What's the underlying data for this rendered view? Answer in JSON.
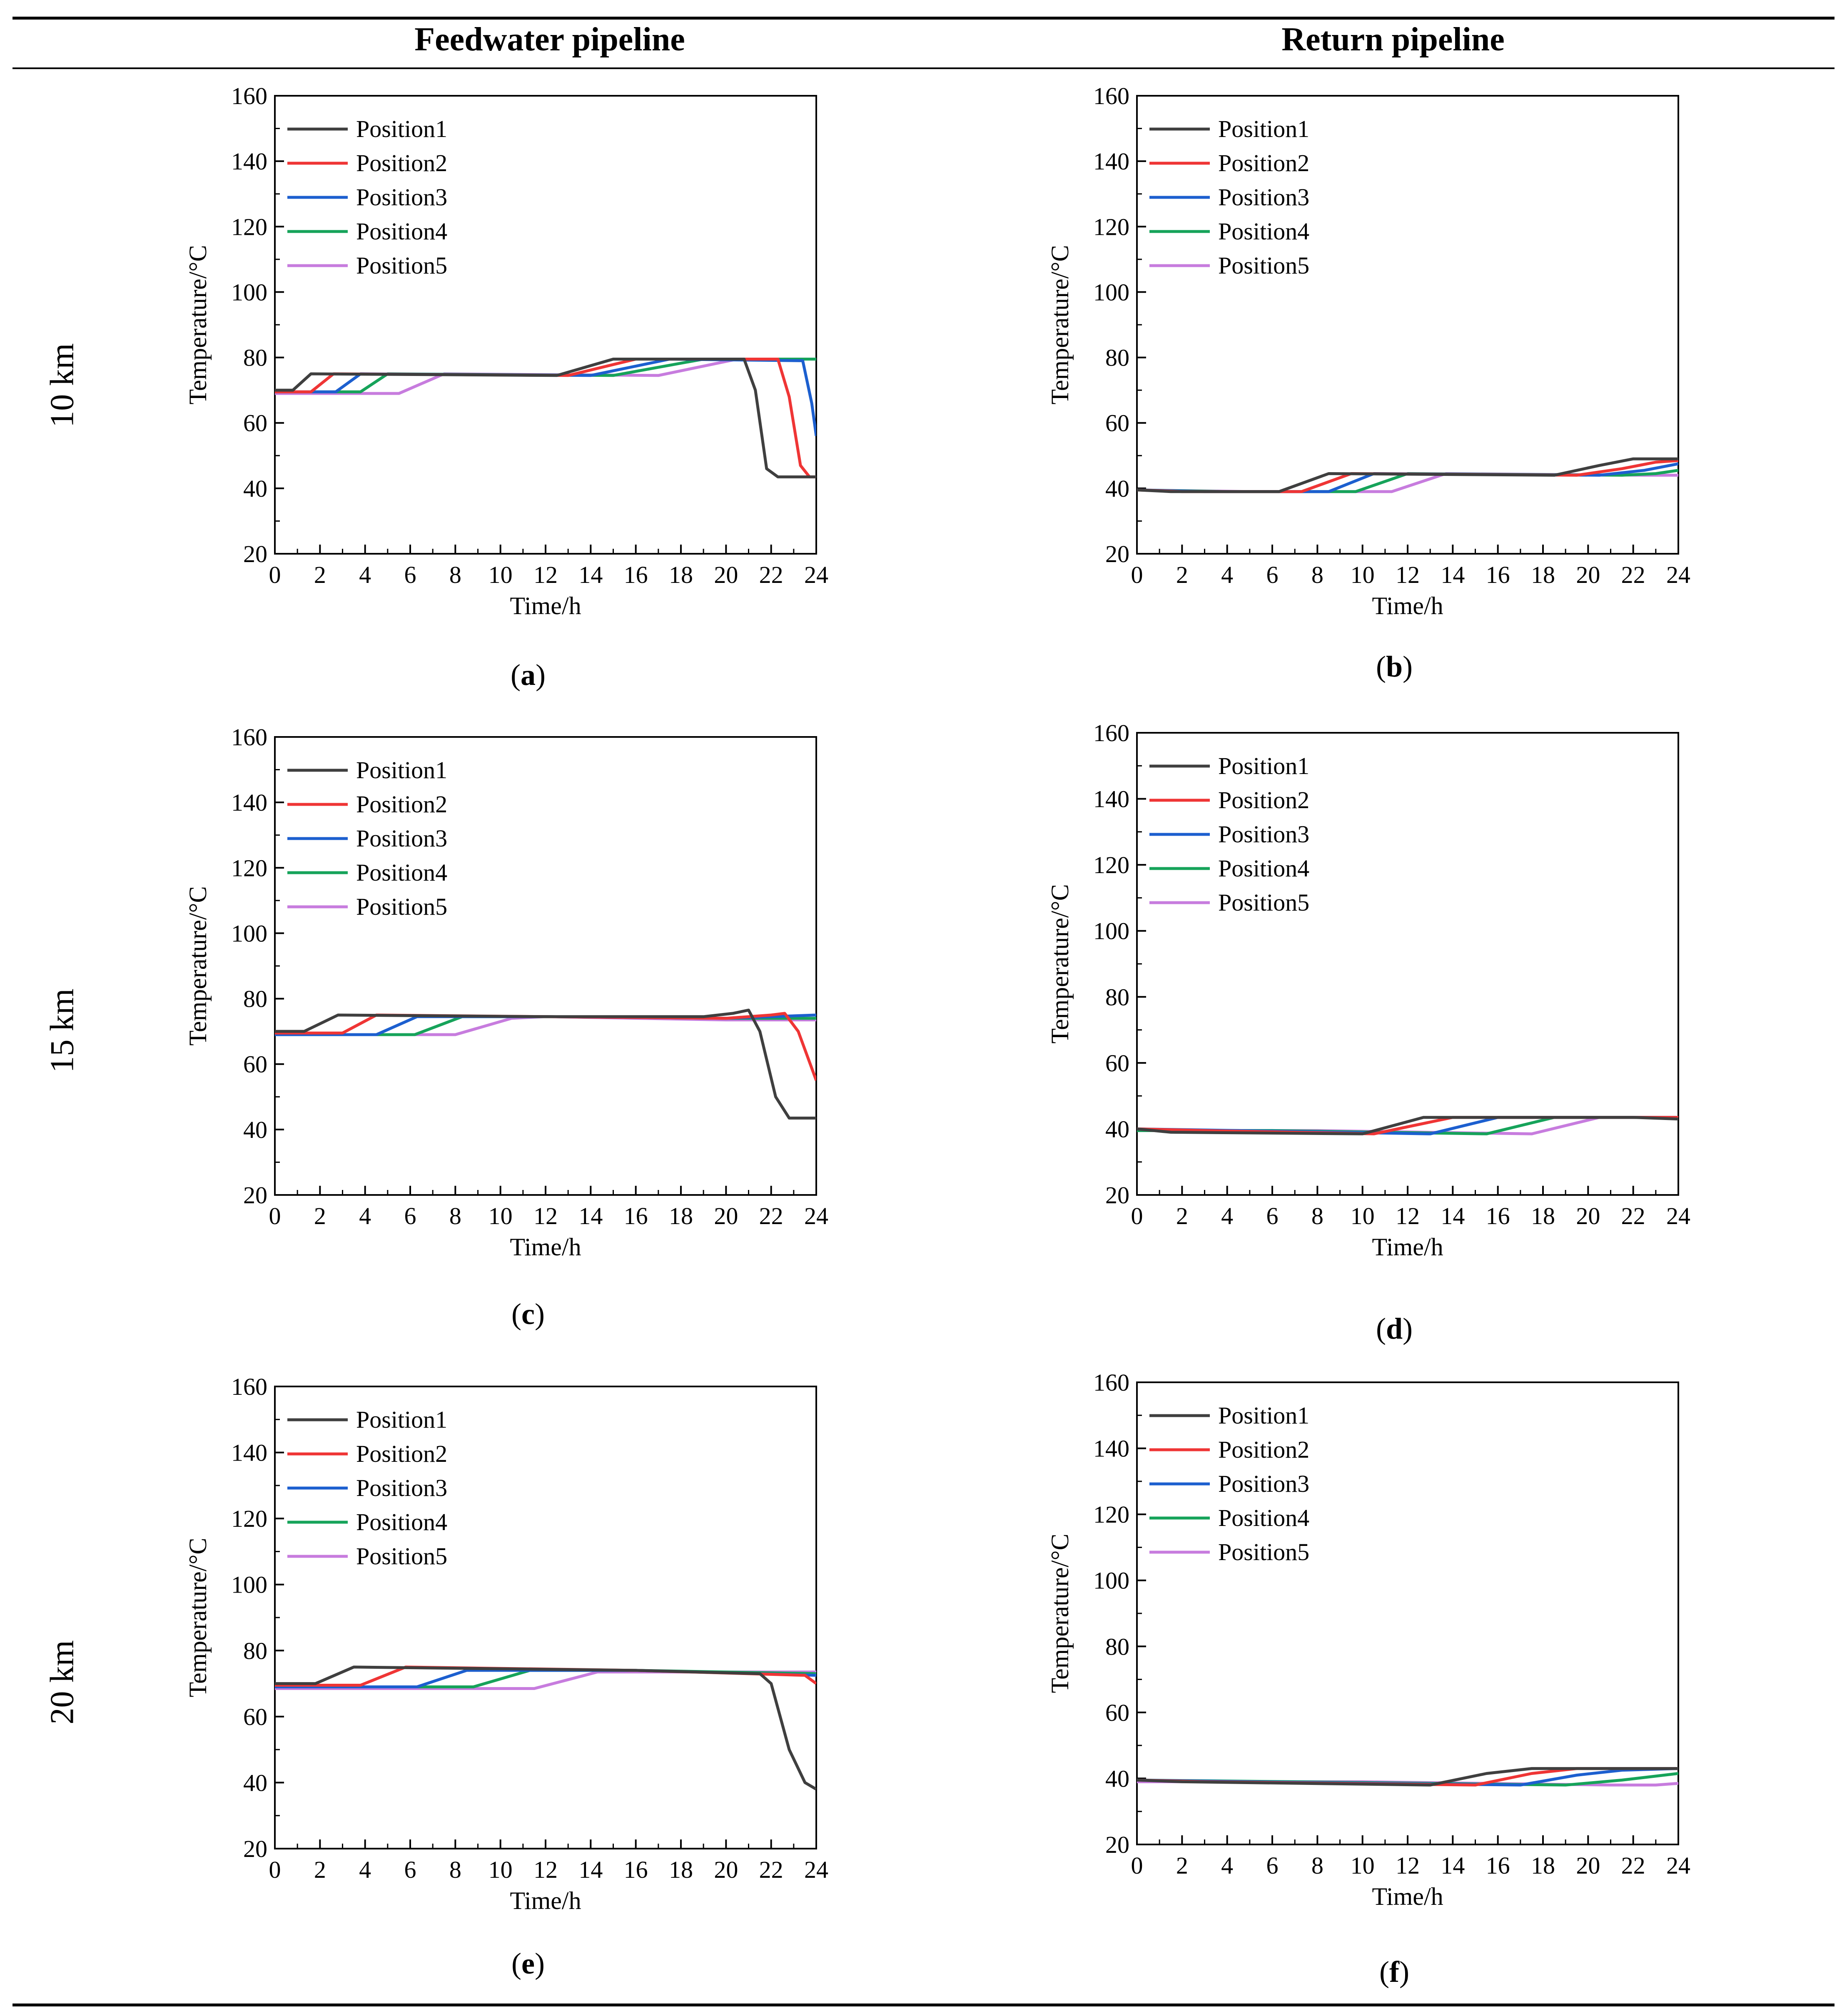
{
  "header": {
    "col_left": "Feedwater pipeline",
    "col_right": "Return pipeline"
  },
  "rows": [
    {
      "label": "10 km"
    },
    {
      "label": "15 km"
    },
    {
      "label": "20 km"
    }
  ],
  "captions": [
    "a",
    "b",
    "c",
    "d",
    "e",
    "f"
  ],
  "series_colors": [
    "#3f3f3f",
    "#ef3535",
    "#1c5fcf",
    "#16a35a",
    "#c77cde"
  ],
  "chart_data": [
    {
      "id": "a",
      "type": "line",
      "xlabel": "Time/h",
      "ylabel": "Temperature/°C",
      "xlim": [
        0,
        24
      ],
      "ylim": [
        20,
        160
      ],
      "xticks": [
        0,
        2,
        4,
        6,
        8,
        10,
        12,
        14,
        16,
        18,
        20,
        22,
        24
      ],
      "yticks": [
        20,
        40,
        60,
        80,
        100,
        120,
        140,
        160
      ],
      "legend": "top-left",
      "series": [
        {
          "name": "Position1",
          "points": [
            [
              0,
              70
            ],
            [
              0.8,
              70
            ],
            [
              1.6,
              75
            ],
            [
              12.5,
              74.5
            ],
            [
              15,
              79.5
            ],
            [
              20.8,
              79.5
            ],
            [
              21.3,
              70
            ],
            [
              21.8,
              46
            ],
            [
              22.3,
              43.5
            ],
            [
              24,
              43.5
            ]
          ]
        },
        {
          "name": "Position2",
          "points": [
            [
              0,
              69.5
            ],
            [
              1.6,
              69.5
            ],
            [
              2.6,
              75
            ],
            [
              13,
              74.5
            ],
            [
              16,
              79.5
            ],
            [
              22.3,
              79.5
            ],
            [
              22.8,
              68
            ],
            [
              23.3,
              47
            ],
            [
              23.7,
              43.5
            ],
            [
              24,
              43.5
            ]
          ]
        },
        {
          "name": "Position3",
          "points": [
            [
              0,
              69.5
            ],
            [
              2.7,
              69.5
            ],
            [
              3.8,
              75
            ],
            [
              14,
              74.5
            ],
            [
              17.5,
              79.5
            ],
            [
              23.4,
              79
            ],
            [
              23.8,
              66
            ],
            [
              24,
              56
            ]
          ]
        },
        {
          "name": "Position4",
          "points": [
            [
              0,
              69.5
            ],
            [
              3.8,
              69.5
            ],
            [
              5,
              75
            ],
            [
              15,
              74.5
            ],
            [
              19,
              79.5
            ],
            [
              24,
              79.5
            ]
          ]
        },
        {
          "name": "Position5",
          "points": [
            [
              0,
              69
            ],
            [
              5.5,
              69
            ],
            [
              7.5,
              75
            ],
            [
              17,
              74.5
            ],
            [
              20.5,
              79.5
            ],
            [
              24,
              79.5
            ]
          ]
        }
      ]
    },
    {
      "id": "b",
      "type": "line",
      "xlabel": "Time/h",
      "ylabel": "Temperature/°C",
      "xlim": [
        0,
        24
      ],
      "ylim": [
        20,
        160
      ],
      "xticks": [
        0,
        2,
        4,
        6,
        8,
        10,
        12,
        14,
        16,
        18,
        20,
        22,
        24
      ],
      "yticks": [
        20,
        40,
        60,
        80,
        100,
        120,
        140,
        160
      ],
      "legend": "top-left",
      "series": [
        {
          "name": "Position1",
          "points": [
            [
              0,
              39.5
            ],
            [
              1.5,
              39
            ],
            [
              6.3,
              39
            ],
            [
              8.5,
              44.5
            ],
            [
              18.5,
              44
            ],
            [
              20.5,
              47
            ],
            [
              22,
              49
            ],
            [
              24,
              49
            ]
          ]
        },
        {
          "name": "Position2",
          "points": [
            [
              0,
              39.5
            ],
            [
              2,
              39
            ],
            [
              7.3,
              39
            ],
            [
              9.5,
              44.5
            ],
            [
              19.5,
              44
            ],
            [
              21.5,
              46
            ],
            [
              23,
              48
            ],
            [
              24,
              48.5
            ]
          ]
        },
        {
          "name": "Position3",
          "points": [
            [
              0,
              39.5
            ],
            [
              3,
              39
            ],
            [
              8.5,
              39
            ],
            [
              10.5,
              44.5
            ],
            [
              20.5,
              44
            ],
            [
              22.5,
              45.5
            ],
            [
              24,
              47.5
            ]
          ]
        },
        {
          "name": "Position4",
          "points": [
            [
              0,
              39.5
            ],
            [
              4,
              39
            ],
            [
              9.7,
              39
            ],
            [
              12,
              44.5
            ],
            [
              21.5,
              44
            ],
            [
              23,
              44.5
            ],
            [
              24,
              45.5
            ]
          ]
        },
        {
          "name": "Position5",
          "points": [
            [
              0,
              39.5
            ],
            [
              5,
              39
            ],
            [
              11.3,
              39
            ],
            [
              13.7,
              44.5
            ],
            [
              22.5,
              44
            ],
            [
              24,
              44
            ]
          ]
        }
      ]
    },
    {
      "id": "c",
      "type": "line",
      "xlabel": "Time/h",
      "ylabel": "Temperature/°C",
      "xlim": [
        0,
        24
      ],
      "ylim": [
        20,
        160
      ],
      "xticks": [
        0,
        2,
        4,
        6,
        8,
        10,
        12,
        14,
        16,
        18,
        20,
        22,
        24
      ],
      "yticks": [
        20,
        40,
        60,
        80,
        100,
        120,
        140,
        160
      ],
      "legend": "top-left",
      "series": [
        {
          "name": "Position1",
          "points": [
            [
              0,
              70
            ],
            [
              1.3,
              70
            ],
            [
              2.8,
              75
            ],
            [
              12,
              74.5
            ],
            [
              19,
              74.5
            ],
            [
              20.3,
              75.5
            ],
            [
              21,
              76.5
            ],
            [
              21.5,
              70
            ],
            [
              22.2,
              50
            ],
            [
              22.8,
              43.5
            ],
            [
              24,
              43.5
            ]
          ]
        },
        {
          "name": "Position2",
          "points": [
            [
              0,
              69.5
            ],
            [
              3,
              69.5
            ],
            [
              4.5,
              75
            ],
            [
              12,
              74.5
            ],
            [
              20,
              74
            ],
            [
              22,
              75
            ],
            [
              22.6,
              75.5
            ],
            [
              23.2,
              70
            ],
            [
              24,
              55
            ]
          ]
        },
        {
          "name": "Position3",
          "points": [
            [
              0,
              69
            ],
            [
              4.5,
              69
            ],
            [
              6.3,
              74.5
            ],
            [
              12,
              74.5
            ],
            [
              20,
              74
            ],
            [
              24,
              75
            ]
          ]
        },
        {
          "name": "Position4",
          "points": [
            [
              0,
              69
            ],
            [
              6.2,
              69
            ],
            [
              8.3,
              74.5
            ],
            [
              12,
              74.5
            ],
            [
              20,
              74
            ],
            [
              24,
              74
            ]
          ]
        },
        {
          "name": "Position5",
          "points": [
            [
              0,
              69
            ],
            [
              8,
              69
            ],
            [
              10.5,
              74
            ],
            [
              12,
              74.5
            ],
            [
              20,
              73.5
            ],
            [
              24,
              73.5
            ]
          ]
        }
      ]
    },
    {
      "id": "d",
      "type": "line",
      "xlabel": "Time/h",
      "ylabel": "Temperature/°C",
      "xlim": [
        0,
        24
      ],
      "ylim": [
        20,
        160
      ],
      "xticks": [
        0,
        2,
        4,
        6,
        8,
        10,
        12,
        14,
        16,
        18,
        20,
        22,
        24
      ],
      "yticks": [
        20,
        40,
        60,
        80,
        100,
        120,
        140,
        160
      ],
      "legend": "top-left",
      "series": [
        {
          "name": "Position1",
          "points": [
            [
              0,
              40
            ],
            [
              1.5,
              39
            ],
            [
              10,
              38.5
            ],
            [
              12.7,
              43.5
            ],
            [
              22,
              43.5
            ],
            [
              24,
              43
            ]
          ]
        },
        {
          "name": "Position2",
          "points": [
            [
              0,
              40
            ],
            [
              3,
              39.5
            ],
            [
              10.5,
              38.5
            ],
            [
              14,
              43.5
            ],
            [
              22,
              43.5
            ],
            [
              24,
              43.5
            ]
          ]
        },
        {
          "name": "Position3",
          "points": [
            [
              0,
              40
            ],
            [
              4.5,
              39.5
            ],
            [
              13,
              38.5
            ],
            [
              16,
              43.5
            ],
            [
              24,
              43.5
            ]
          ]
        },
        {
          "name": "Position4",
          "points": [
            [
              0,
              39.5
            ],
            [
              6,
              39.5
            ],
            [
              15.5,
              38.5
            ],
            [
              18.5,
              43.5
            ],
            [
              24,
              43.5
            ]
          ]
        },
        {
          "name": "Position5",
          "points": [
            [
              0,
              39.5
            ],
            [
              8,
              39.5
            ],
            [
              17.5,
              38.5
            ],
            [
              20.5,
              43.5
            ],
            [
              24,
              43.5
            ]
          ]
        }
      ]
    },
    {
      "id": "e",
      "type": "line",
      "xlabel": "Time/h",
      "ylabel": "Temperature/°C",
      "xlim": [
        0,
        24
      ],
      "ylim": [
        20,
        160
      ],
      "xticks": [
        0,
        2,
        4,
        6,
        8,
        10,
        12,
        14,
        16,
        18,
        20,
        22,
        24
      ],
      "yticks": [
        20,
        40,
        60,
        80,
        100,
        120,
        140,
        160
      ],
      "legend": "top-left",
      "series": [
        {
          "name": "Position1",
          "points": [
            [
              0,
              70
            ],
            [
              1.8,
              70
            ],
            [
              3.5,
              75
            ],
            [
              16,
              74
            ],
            [
              21.5,
              73
            ],
            [
              22,
              70
            ],
            [
              22.8,
              50
            ],
            [
              23.5,
              40
            ],
            [
              24,
              38
            ]
          ]
        },
        {
          "name": "Position2",
          "points": [
            [
              0,
              69.5
            ],
            [
              3.8,
              69.5
            ],
            [
              5.8,
              75
            ],
            [
              16,
              74
            ],
            [
              23.5,
              72.5
            ],
            [
              24,
              70
            ]
          ]
        },
        {
          "name": "Position3",
          "points": [
            [
              0,
              69
            ],
            [
              6.3,
              69
            ],
            [
              8.5,
              74
            ],
            [
              16,
              74
            ],
            [
              24,
              72.5
            ]
          ]
        },
        {
          "name": "Position4",
          "points": [
            [
              0,
              69
            ],
            [
              8.8,
              69
            ],
            [
              11.3,
              74
            ],
            [
              16,
              74
            ],
            [
              24,
              73
            ]
          ]
        },
        {
          "name": "Position5",
          "points": [
            [
              0,
              68.5
            ],
            [
              11.5,
              68.5
            ],
            [
              14.3,
              73.5
            ],
            [
              24,
              73.5
            ]
          ]
        }
      ]
    },
    {
      "id": "f",
      "type": "line",
      "xlabel": "Time/h",
      "ylabel": "Temperature/°C",
      "xlim": [
        0,
        24
      ],
      "ylim": [
        20,
        160
      ],
      "xticks": [
        0,
        2,
        4,
        6,
        8,
        10,
        12,
        14,
        16,
        18,
        20,
        22,
        24
      ],
      "yticks": [
        20,
        40,
        60,
        80,
        100,
        120,
        140,
        160
      ],
      "legend": "top-left",
      "series": [
        {
          "name": "Position1",
          "points": [
            [
              0,
              39.5
            ],
            [
              2,
              39
            ],
            [
              13,
              38
            ],
            [
              15.5,
              41.5
            ],
            [
              17.5,
              43
            ],
            [
              24,
              43
            ]
          ]
        },
        {
          "name": "Position2",
          "points": [
            [
              0,
              39.5
            ],
            [
              3,
              39
            ],
            [
              15,
              38
            ],
            [
              17.5,
              41.5
            ],
            [
              19.5,
              43
            ],
            [
              24,
              43
            ]
          ]
        },
        {
          "name": "Position3",
          "points": [
            [
              0,
              39.5
            ],
            [
              5,
              39
            ],
            [
              17,
              38
            ],
            [
              19.5,
              41
            ],
            [
              21.5,
              42.5
            ],
            [
              24,
              43
            ]
          ]
        },
        {
          "name": "Position4",
          "points": [
            [
              0,
              39.5
            ],
            [
              7,
              39
            ],
            [
              19,
              38
            ],
            [
              21.5,
              39.5
            ],
            [
              24,
              41.5
            ]
          ]
        },
        {
          "name": "Position5",
          "points": [
            [
              0,
              39
            ],
            [
              10,
              39
            ],
            [
              21,
              38
            ],
            [
              23,
              38
            ],
            [
              24,
              38.5
            ]
          ]
        }
      ]
    }
  ]
}
